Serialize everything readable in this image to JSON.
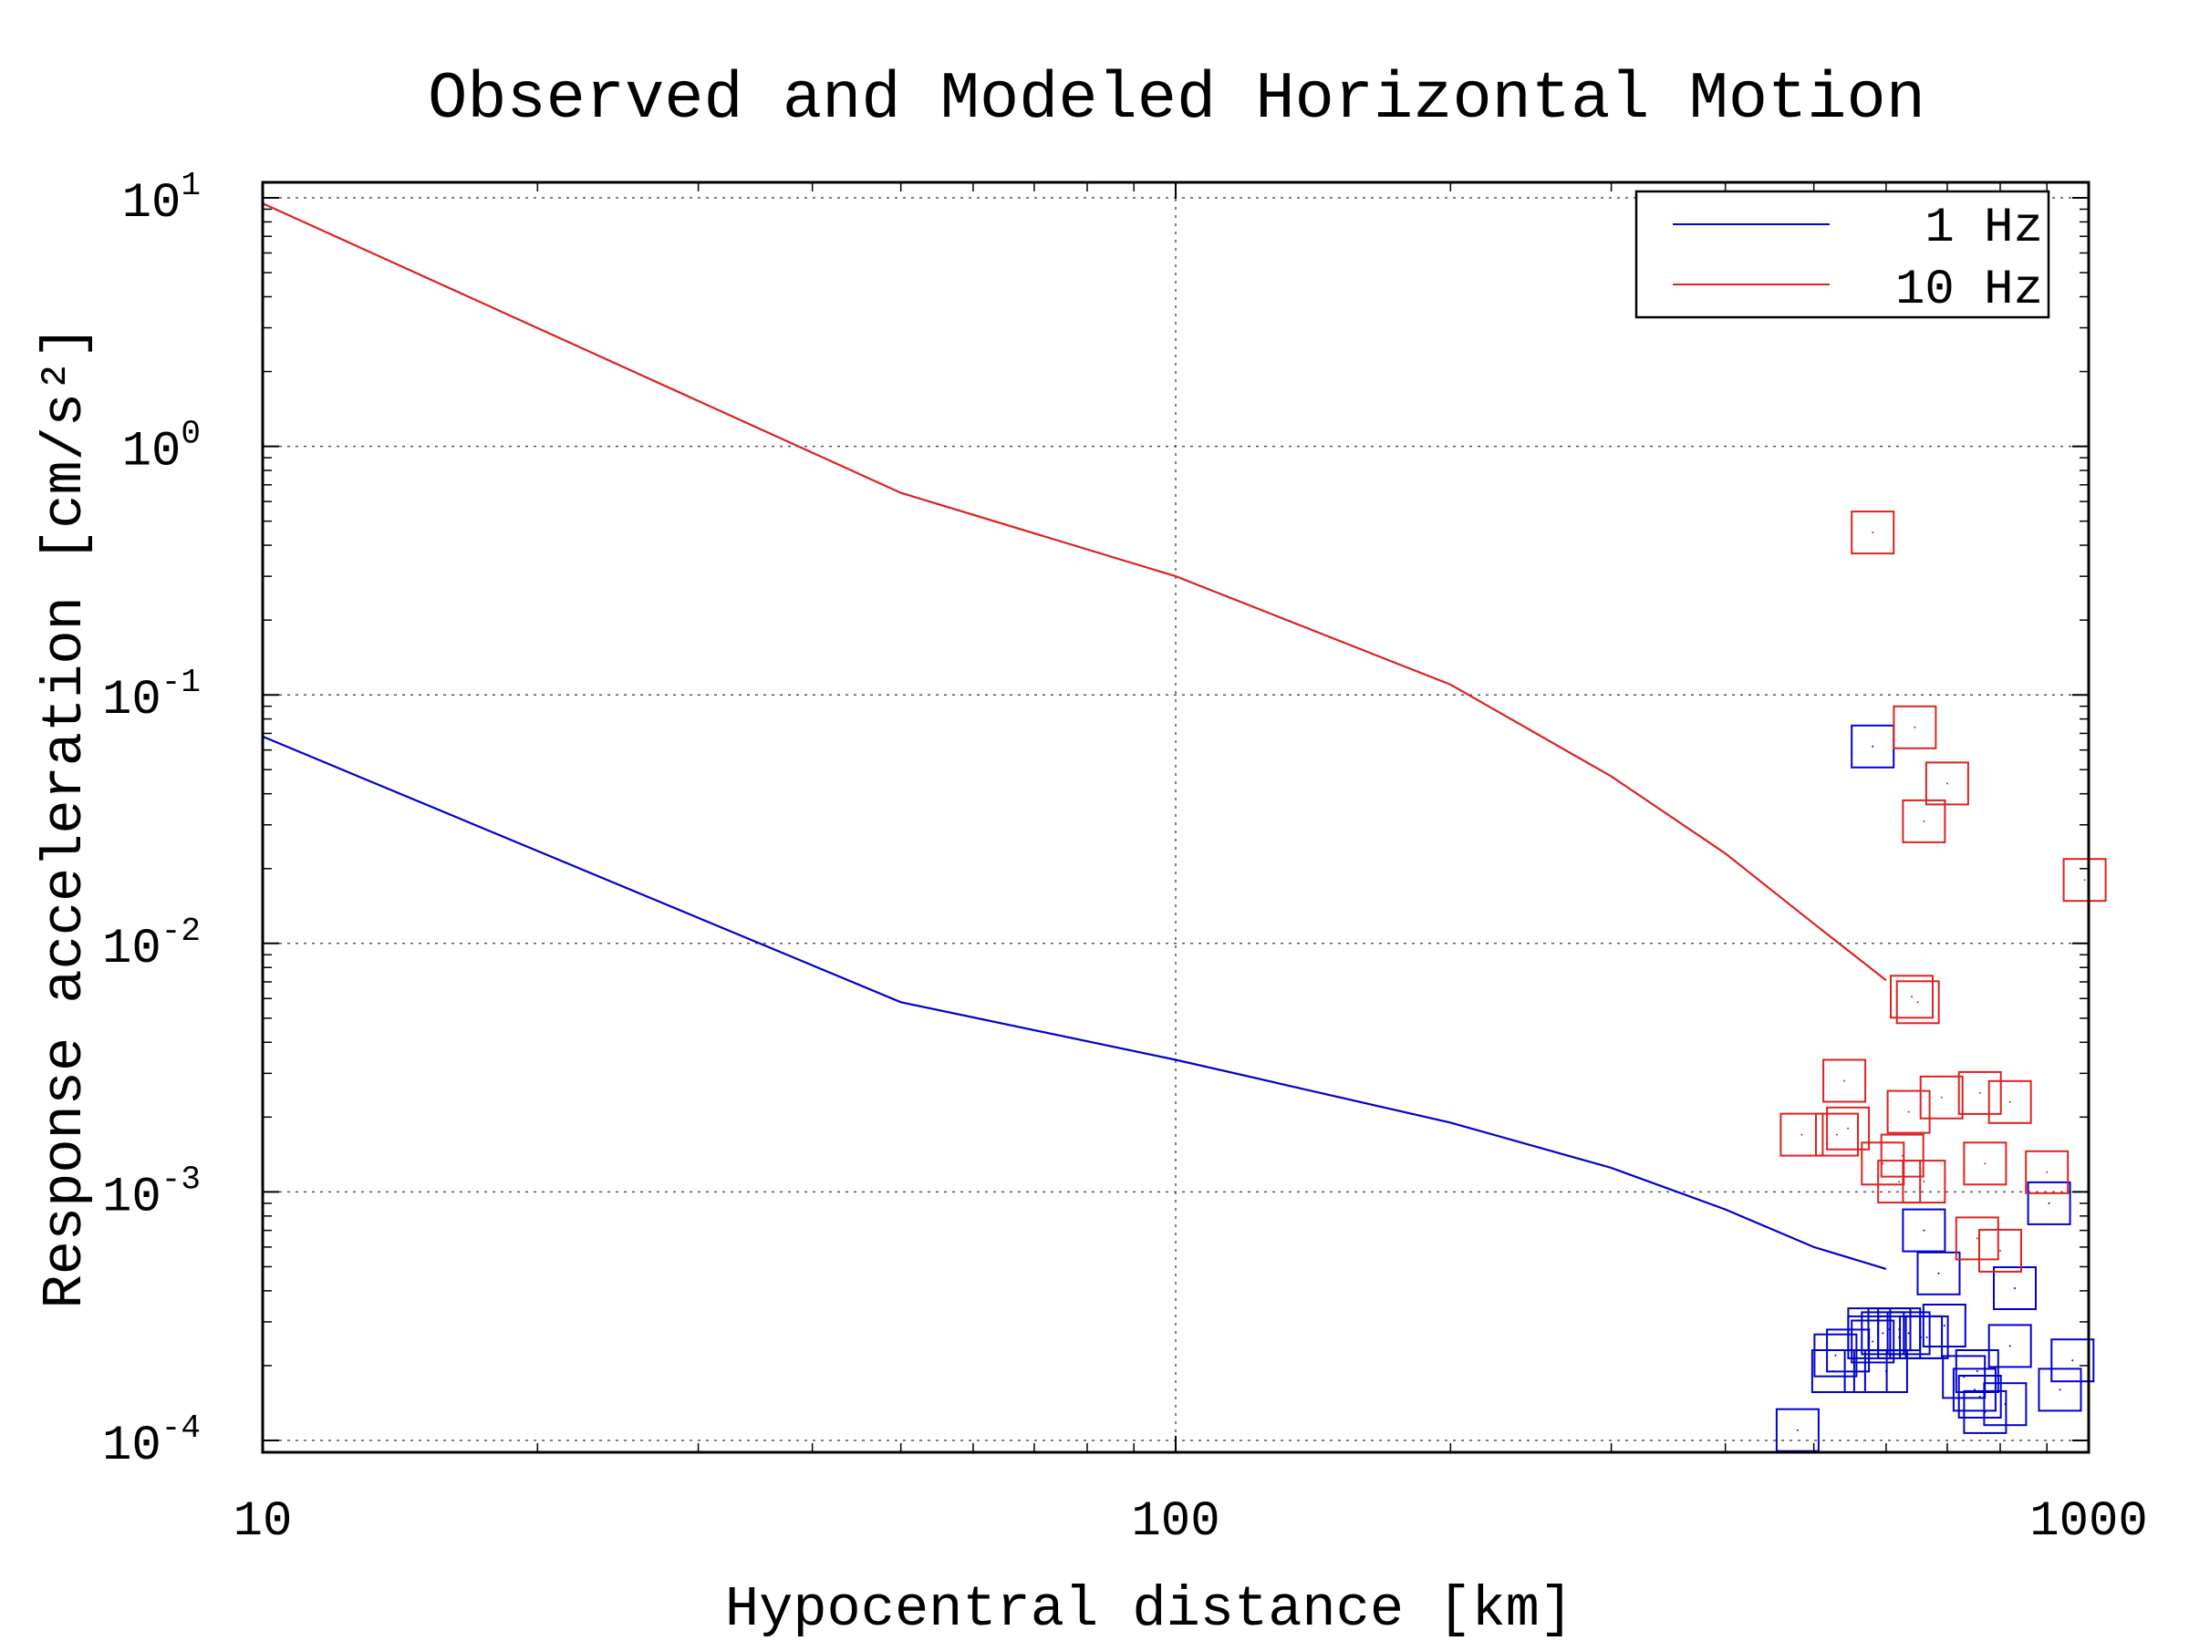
{
  "chart_data": {
    "type": "scatter",
    "title": "Observed and Modeled Horizontal Motion",
    "xlabel": "Hypocentral distance [km]",
    "ylabel": "Response acceleration [cm/s²]",
    "xscale": "log",
    "yscale": "log",
    "xlim": [
      10,
      1000
    ],
    "ylim": [
      0.0001,
      10
    ],
    "x_ticks": [
      {
        "value": 10,
        "label": "10"
      },
      {
        "value": 100,
        "label": "100"
      },
      {
        "value": 1000,
        "label": "1000"
      }
    ],
    "y_ticks": [
      {
        "value": 10,
        "base": "10",
        "exp": "1"
      },
      {
        "value": 1,
        "base": "10",
        "exp": "0"
      },
      {
        "value": 0.1,
        "base": "10",
        "exp": "-1"
      },
      {
        "value": 0.01,
        "base": "10",
        "exp": "-2"
      },
      {
        "value": 0.001,
        "base": "10",
        "exp": "-3"
      },
      {
        "value": 0.0001,
        "base": "10",
        "exp": "-4"
      }
    ],
    "grid": true,
    "legend_position": "top-right",
    "series": [
      {
        "name": "1 Hz",
        "color": "#0000cc",
        "kind": "model-line",
        "x": [
          10,
          50,
          100,
          200,
          300,
          400,
          500,
          600
        ],
        "y": [
          0.068,
          0.0058,
          0.0034,
          0.0019,
          0.00125,
          0.00085,
          0.0006,
          0.00049
        ]
      },
      {
        "name": "10 Hz",
        "color": "#dd2222",
        "kind": "model-line",
        "x": [
          10,
          50,
          100,
          200,
          300,
          400,
          500,
          600
        ],
        "y": [
          9.5,
          0.65,
          0.3,
          0.11,
          0.047,
          0.023,
          0.012,
          0.0071
        ]
      },
      {
        "name": "",
        "color": "#0000cc",
        "kind": "observed",
        "x": [
          580,
          480,
          525,
          528,
          545,
          570,
          575,
          580,
          595,
          600,
          605,
          620,
          620,
          635,
          655,
          660,
          665,
          685,
          695,
          730,
          750,
          755,
          760,
          770,
          810,
          820,
          830,
          930,
          960,
          905,
          575
        ],
        "y": [
          0.062,
          0.00011,
          0.00019,
          0.00022,
          0.00023,
          0.00019,
          0.00026,
          0.00025,
          0.00027,
          0.00019,
          0.00028,
          0.00026,
          0.00028,
          0.00027,
          0.00026,
          0.0007,
          0.00026,
          0.00047,
          0.00029,
          0.00018,
          0.00016,
          0.00019,
          0.00015,
          0.00013,
          0.00014,
          0.00024,
          0.00041,
          0.00016,
          0.00021,
          0.0009,
          0.00028
        ]
      },
      {
        "name": "",
        "color": "#dd2222",
        "kind": "observed",
        "x": [
          580,
          645,
          700,
          660,
          990,
          640,
          650,
          540,
          485,
          530,
          545,
          595,
          635,
          690,
          760,
          770,
          755,
          800,
          820,
          900,
          620,
          660,
          625
        ],
        "y": [
          0.45,
          0.074,
          0.044,
          0.031,
          0.018,
          0.0061,
          0.0058,
          0.0028,
          0.0017,
          0.0017,
          0.0018,
          0.0013,
          0.0021,
          0.0024,
          0.0025,
          0.0013,
          0.00065,
          0.00058,
          0.0023,
          0.0012,
          0.0011,
          0.0011,
          0.0014
        ]
      }
    ]
  }
}
